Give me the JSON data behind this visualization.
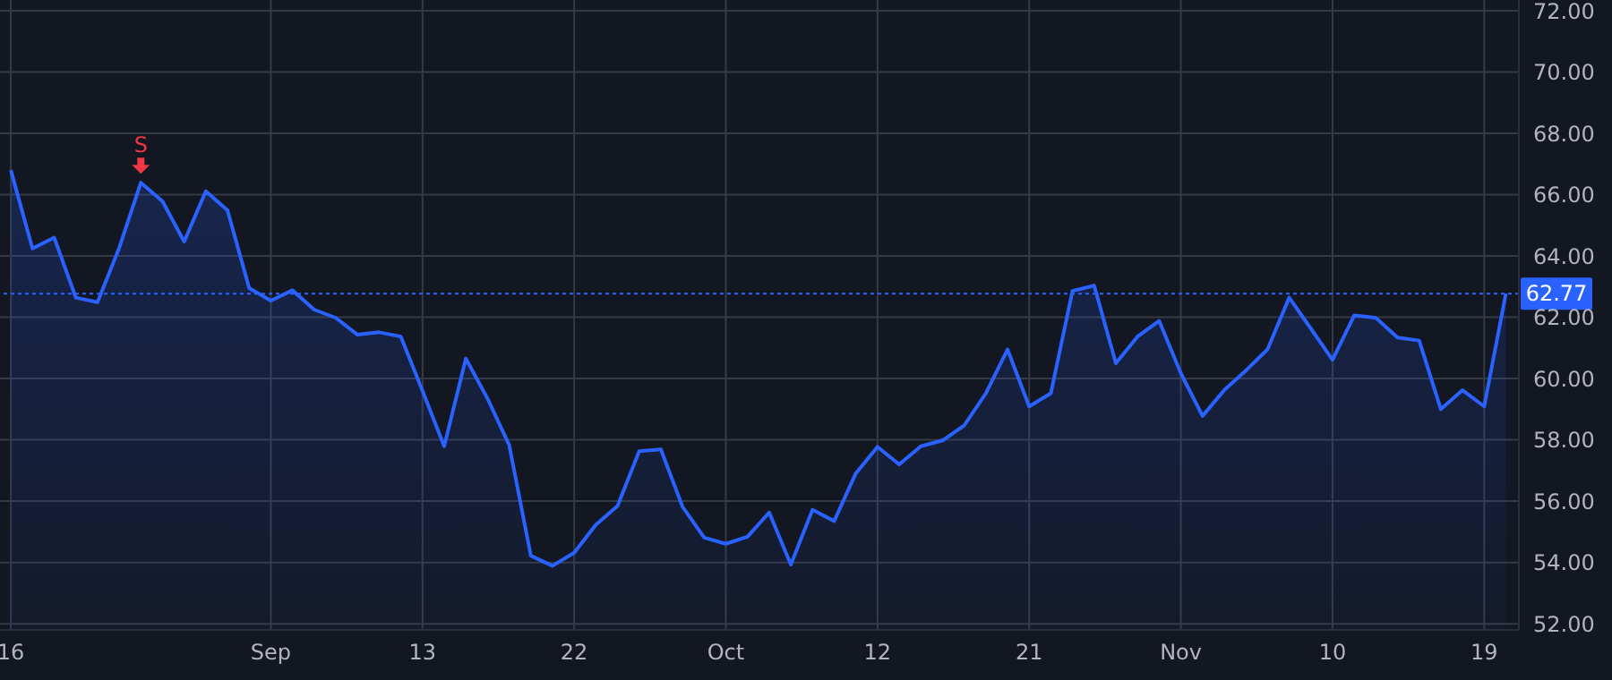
{
  "chart_data": {
    "type": "area",
    "categories": [
      "16",
      null,
      null,
      null,
      null,
      null,
      null,
      null,
      null,
      null,
      null,
      null,
      "Sep",
      null,
      null,
      null,
      null,
      null,
      null,
      "13",
      null,
      null,
      null,
      null,
      null,
      null,
      "22",
      null,
      null,
      null,
      null,
      null,
      null,
      "Oct",
      null,
      null,
      null,
      null,
      null,
      null,
      "12",
      null,
      null,
      null,
      null,
      null,
      null,
      "21",
      null,
      null,
      null,
      null,
      null,
      null,
      "Nov",
      null,
      null,
      null,
      null,
      null,
      null,
      "10",
      null,
      null,
      null,
      null,
      null,
      null,
      "19",
      null
    ],
    "series": [
      {
        "color": "#2962ff",
        "values": [
          66.8,
          64.24,
          64.6,
          62.64,
          62.49,
          64.26,
          66.39,
          65.78,
          64.47,
          66.11,
          65.49,
          62.95,
          62.54,
          62.88,
          62.25,
          61.98,
          61.43,
          61.51,
          61.37,
          59.6,
          57.79,
          60.65,
          59.35,
          57.83,
          54.22,
          53.89,
          54.32,
          55.23,
          55.84,
          57.63,
          57.69,
          55.82,
          54.81,
          54.61,
          54.84,
          55.63,
          53.93,
          55.72,
          55.35,
          56.91,
          57.77,
          57.2,
          57.79,
          57.98,
          58.47,
          59.52,
          60.95,
          59.09,
          59.52,
          62.86,
          63.03,
          60.5,
          61.37,
          61.88,
          60.17,
          58.78,
          59.62,
          60.26,
          60.95,
          62.64,
          61.63,
          60.61,
          62.06,
          61.98,
          61.34,
          61.24,
          59.0,
          59.62,
          59.09,
          62.77
        ]
      }
    ],
    "ylim": [
      51.8,
      72.35
    ],
    "yticks": [
      {
        "value": 52,
        "label": "52.00"
      },
      {
        "value": 54,
        "label": "54.00"
      },
      {
        "value": 56,
        "label": "56.00"
      },
      {
        "value": 58,
        "label": "58.00"
      },
      {
        "value": 60,
        "label": "60.00"
      },
      {
        "value": 62,
        "label": "62.00"
      },
      {
        "value": 64,
        "label": "64.00"
      },
      {
        "value": 66,
        "label": "66.00"
      },
      {
        "value": 68,
        "label": "68.00"
      },
      {
        "value": 70,
        "label": "70.00"
      },
      {
        "value": 72,
        "label": "72.00"
      }
    ],
    "grid": true,
    "ref_lines": [
      {
        "axis": "y",
        "value": 62.77,
        "label": "62.77",
        "color": "#2962ff",
        "line_style": "dotted"
      }
    ],
    "annotations": [
      {
        "text": "S",
        "y": 66.39
      }
    ]
  }
}
